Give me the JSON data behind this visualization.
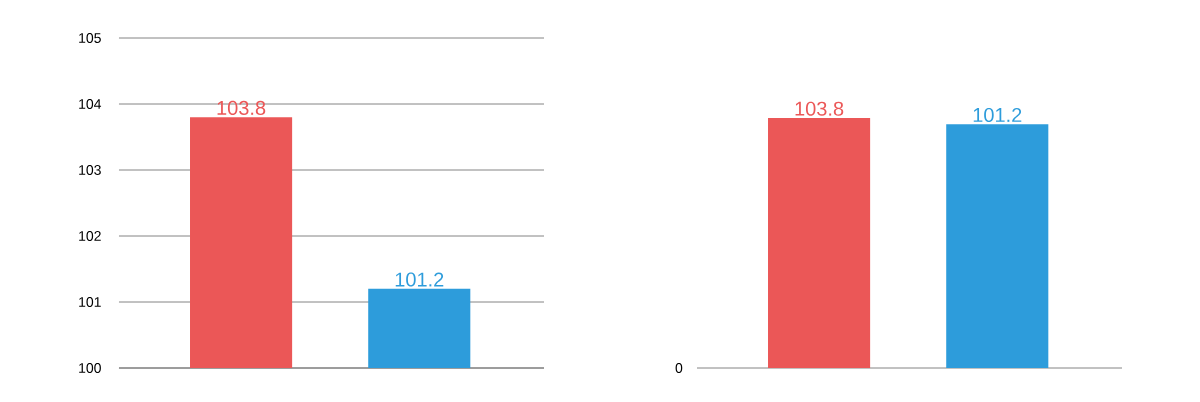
{
  "chart_data": [
    {
      "type": "bar",
      "categories": [
        null,
        null
      ],
      "values": [
        103.8,
        101.2
      ],
      "colors": [
        "#eb5757",
        "#2d9cdb"
      ],
      "ylim": [
        100,
        105
      ],
      "yticks": [
        100,
        101,
        102,
        103,
        104,
        105
      ],
      "grid": "y",
      "tick_labels": "y",
      "data_labels": true
    },
    {
      "type": "bar",
      "categories": [
        null,
        null
      ],
      "values": [
        103.8,
        101.2
      ],
      "colors": [
        "#eb5757",
        "#2d9cdb"
      ],
      "tick_labels": false,
      "data_labels": true,
      "annotations": [
        "0"
      ]
    }
  ]
}
